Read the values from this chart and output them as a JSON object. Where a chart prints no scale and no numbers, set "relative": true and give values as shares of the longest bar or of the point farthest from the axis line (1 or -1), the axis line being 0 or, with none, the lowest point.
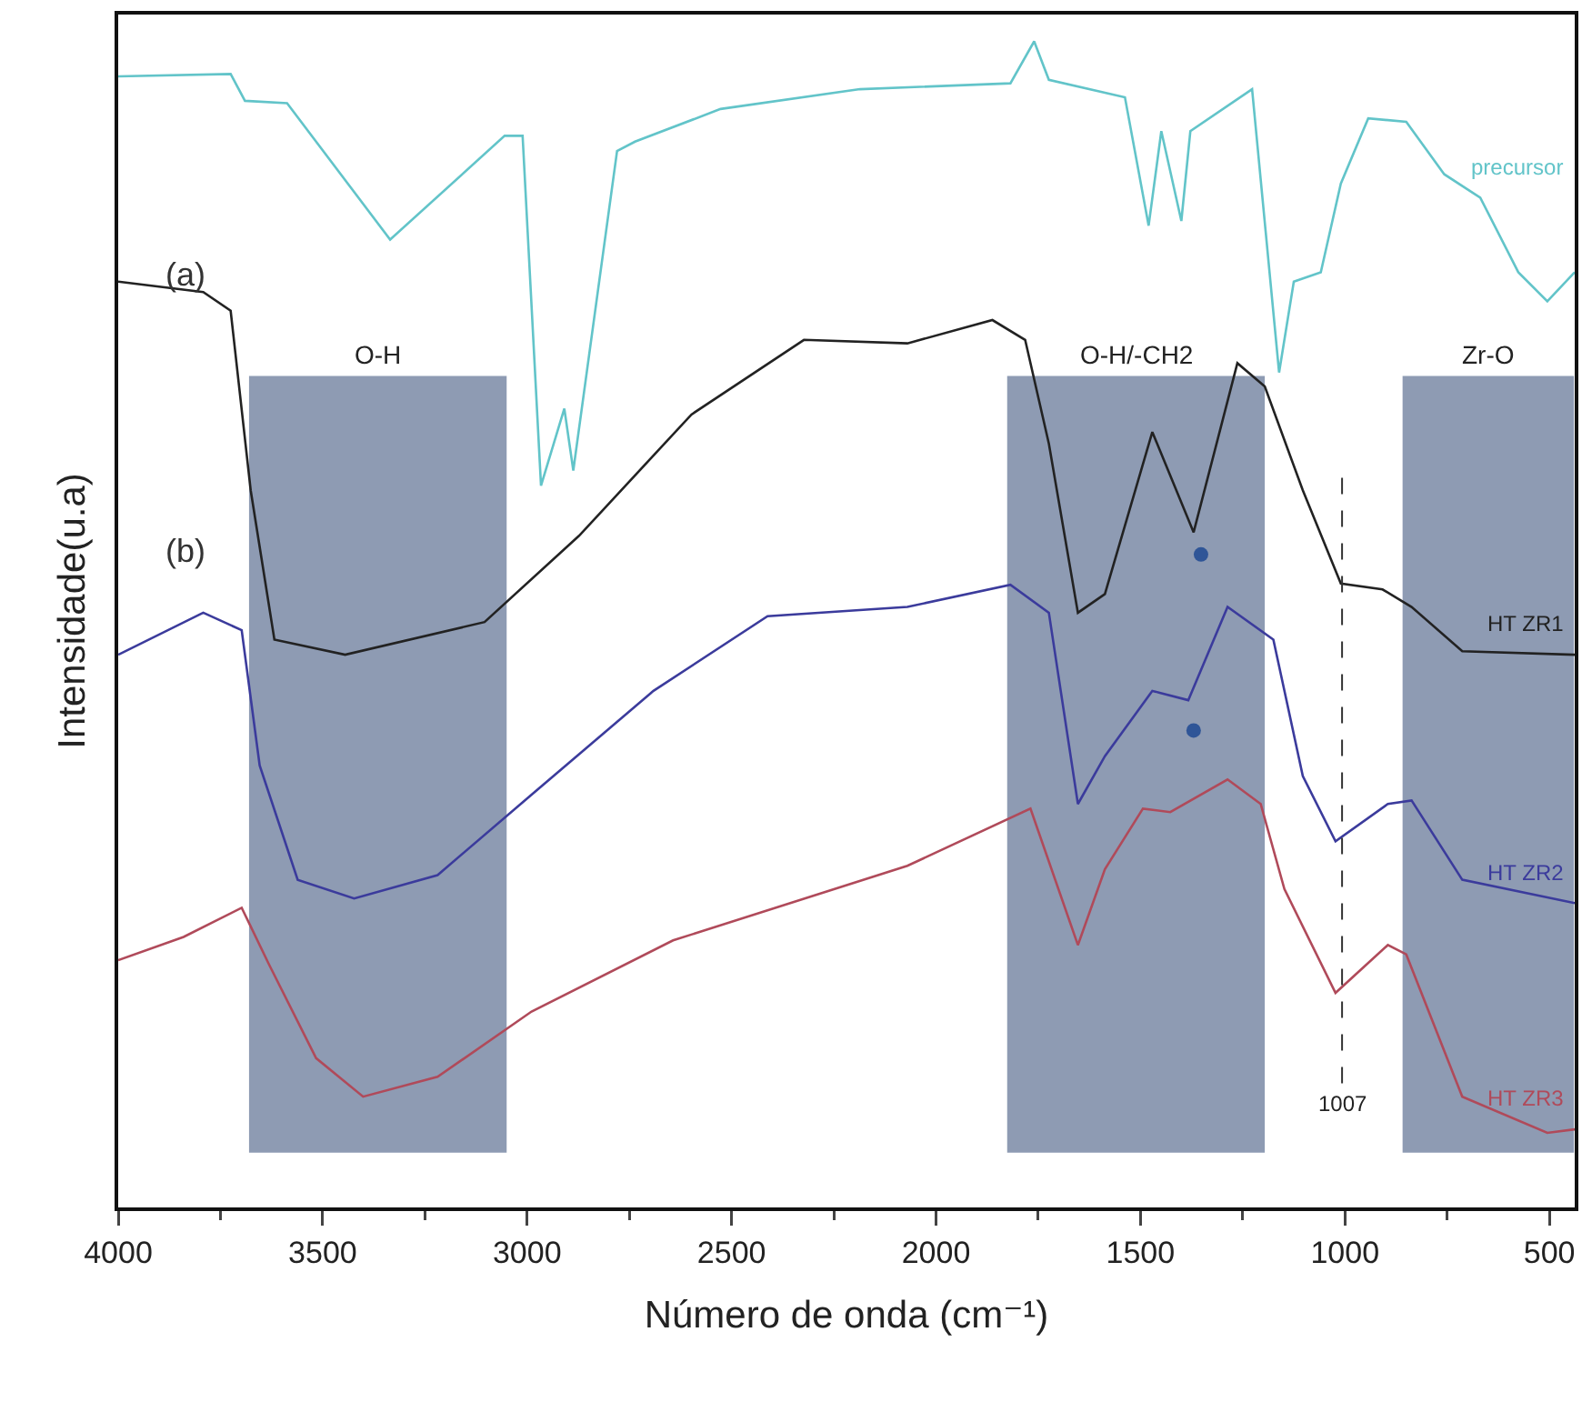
{
  "chart_data": {
    "type": "line",
    "relative": true,
    "xlabel": "Número de onda (cm⁻¹)",
    "ylabel": "Intensidade(u.a)",
    "xlim": [
      4000,
      438
    ],
    "xticks": [
      4000,
      3500,
      3000,
      2500,
      2000,
      1500,
      1000,
      500
    ],
    "grid": false,
    "legend": false,
    "marker": "none",
    "line_style": "solid",
    "series": [
      {
        "name": "precursor",
        "color": "#62c4c9",
        "x": [
          4000,
          3725,
          3690,
          3587,
          3335,
          3055,
          3011,
          2966,
          2909,
          2887,
          2780,
          2736,
          2527,
          2186,
          1818,
          1760,
          1724,
          1538,
          1480,
          1449,
          1400,
          1378,
          1227,
          1161,
          1125,
          1059,
          1010,
          943,
          850,
          757,
          669,
          576,
          505,
          438
        ],
        "values": [
          0.97,
          0.972,
          0.949,
          0.947,
          0.83,
          0.919,
          0.919,
          0.619,
          0.685,
          0.632,
          0.906,
          0.914,
          0.942,
          0.959,
          0.964,
          1.0,
          0.967,
          0.952,
          0.842,
          0.923,
          0.846,
          0.923,
          0.959,
          0.716,
          0.794,
          0.802,
          0.878,
          0.934,
          0.931,
          0.886,
          0.866,
          0.802,
          0.777,
          0.802
        ]
      },
      {
        "name": "HT ZR1",
        "color": "#222222",
        "x": [
          4000,
          3792,
          3725,
          3676,
          3618,
          3445,
          3104,
          2873,
          2598,
          2323,
          2070,
          1862,
          1782,
          1724,
          1653,
          1587,
          1471,
          1370,
          1263,
          1196,
          1103,
          1010,
          908,
          837,
          713,
          438
        ],
        "values": [
          0.794,
          0.785,
          0.769,
          0.615,
          0.487,
          0.474,
          0.502,
          0.576,
          0.68,
          0.744,
          0.741,
          0.761,
          0.744,
          0.655,
          0.51,
          0.526,
          0.665,
          0.579,
          0.724,
          0.704,
          0.615,
          0.535,
          0.53,
          0.515,
          0.477,
          0.474
        ]
      },
      {
        "name": "HT ZR2",
        "color": "#3b3b9c",
        "x": [
          4000,
          3792,
          3698,
          3654,
          3561,
          3423,
          3219,
          2989,
          2691,
          2412,
          2070,
          1818,
          1724,
          1653,
          1587,
          1471,
          1383,
          1287,
          1175,
          1103,
          1023,
          895,
          837,
          713,
          438
        ],
        "values": [
          0.474,
          0.51,
          0.495,
          0.379,
          0.281,
          0.265,
          0.285,
          0.354,
          0.443,
          0.507,
          0.515,
          0.534,
          0.51,
          0.346,
          0.387,
          0.443,
          0.435,
          0.515,
          0.487,
          0.37,
          0.314,
          0.346,
          0.349,
          0.281,
          0.261
        ]
      },
      {
        "name": "HT ZR3",
        "color": "#b04a5a",
        "x": [
          4000,
          3840,
          3698,
          3632,
          3516,
          3401,
          3219,
          2989,
          2643,
          2070,
          1769,
          1653,
          1587,
          1494,
          1427,
          1287,
          1206,
          1148,
          1023,
          895,
          850,
          713,
          505,
          438
        ],
        "values": [
          0.212,
          0.232,
          0.257,
          0.209,
          0.128,
          0.095,
          0.112,
          0.168,
          0.229,
          0.293,
          0.342,
          0.225,
          0.29,
          0.342,
          0.339,
          0.367,
          0.346,
          0.273,
          0.184,
          0.225,
          0.217,
          0.095,
          0.064,
          0.067
        ]
      },
      {
        "type": "scatter",
        "marker": "circle",
        "color": "#2f5597",
        "x": [
          1352,
          1370
        ],
        "values": [
          0.56,
          0.409
        ]
      }
    ],
    "bands": [
      {
        "axis": "x",
        "from": 3680,
        "to": 3050,
        "label": "O-H",
        "color": "#8e9bb3"
      },
      {
        "axis": "x",
        "from": 1826,
        "to": 1196,
        "label": "O-H/-CH2",
        "color": "#8e9bb3"
      },
      {
        "axis": "x",
        "from": 859,
        "to": 440,
        "label": "Zr-O",
        "color": "#8e9bb3"
      }
    ],
    "ref_lines": [
      {
        "axis": "x",
        "value": 1007,
        "label": "1007",
        "line_style": "dashed",
        "color": "#333333"
      }
    ],
    "annotations": [
      "(a)",
      "(b)"
    ]
  }
}
